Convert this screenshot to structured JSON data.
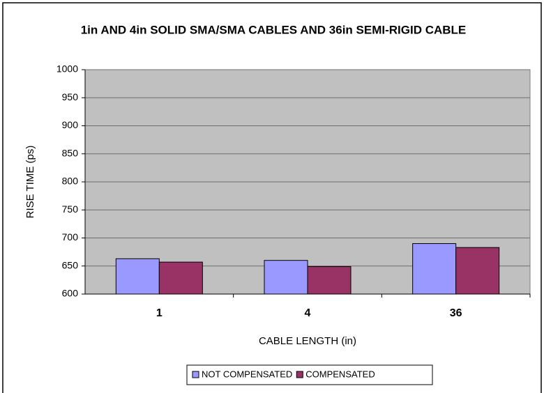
{
  "chart_data": {
    "type": "bar",
    "title": "1in AND 4in SOLID SMA/SMA CABLES AND 36in SEMI-RIGID CABLE",
    "xlabel": "CABLE LENGTH (in)",
    "ylabel": "RISE TIME (ps)",
    "categories": [
      "1",
      "4",
      "36"
    ],
    "series": [
      {
        "name": "NOT COMPENSATED",
        "color": "#9999ff",
        "values": [
          663,
          660,
          690
        ]
      },
      {
        "name": "COMPENSATED",
        "color": "#993366",
        "values": [
          657,
          649,
          683
        ]
      }
    ],
    "ylim": [
      600,
      1000
    ],
    "yticks": [
      600,
      650,
      700,
      750,
      800,
      850,
      900,
      950,
      1000
    ],
    "grid": true,
    "legend": "bottom"
  }
}
